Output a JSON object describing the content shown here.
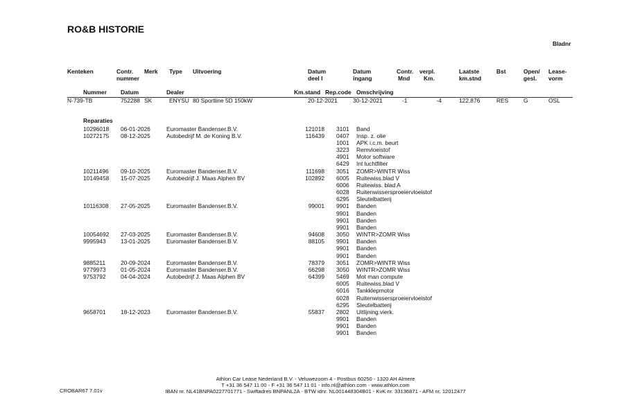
{
  "title": "RO&B HISTORIE",
  "page_label": "Bladnr",
  "headers": {
    "kenteken": "Kenteken",
    "contr_nummer_1": "Contr.",
    "contr_nummer_2": "nummer",
    "merk": "Merk",
    "type": "Type",
    "uitvoering": "Uitvoering",
    "datum_deel_1": "Datum",
    "datum_deel_2": "deel I",
    "datum_ingang_1": "Datum",
    "datum_ingang_2": "ingang",
    "contr_1": "Contr.",
    "contr_2": "Mnd",
    "verpl_1": "verpl.",
    "verpl_2": "Km.",
    "laatste_1": "Laatste",
    "laatste_2": "km.stnd",
    "bst": "Bst",
    "open_1": "Open/",
    "open_2": "gesl.",
    "lease_1": "Lease-",
    "lease_2": "vorm"
  },
  "subheaders": {
    "nummer": "Nummer",
    "datum": "Datum",
    "dealer": "Dealer",
    "kmstand": "Km.stand",
    "repcode": "Rep.code",
    "omschrijving": "Omschrijving"
  },
  "vehicle": {
    "kenteken": "N-739-TB",
    "contract": "752288",
    "merk": "SK",
    "type": "ENYSU",
    "uitvoering": "80 Sportline 5D 150kW",
    "datum_deel_1": "20-12-2021",
    "datum_ingang": "30-12-2021",
    "contr_mnd": "-1",
    "verpl_km": "-4",
    "laatste_km": "122.876",
    "bst": "RES",
    "open_gesl": "G",
    "leasevorm": "OSL"
  },
  "section_label": "Reparaties",
  "repairs": [
    {
      "nummer": "10296018",
      "datum": "06-01-2026",
      "dealer": "Euromaster Bandenser.B.V.",
      "km": "121018",
      "items": [
        {
          "code": "3101",
          "desc": "Band"
        }
      ]
    },
    {
      "nummer": "10272175",
      "datum": "08-12-2025",
      "dealer": "Autobedrijf M. de Koning B.V.",
      "km": "116439",
      "items": [
        {
          "code": "0407",
          "desc": "Insp. z. olie"
        },
        {
          "code": "1001",
          "desc": "APK i.c.m. beurt"
        },
        {
          "code": "3223",
          "desc": "Remvloeistof"
        },
        {
          "code": "4901",
          "desc": "Motor software"
        },
        {
          "code": "6429",
          "desc": "Int luchtfilter"
        }
      ]
    },
    {
      "nummer": "10211496",
      "datum": "09-10-2025",
      "dealer": "Euromaster Bandenser.B.V.",
      "km": "111698",
      "items": [
        {
          "code": "3051",
          "desc": "ZOMR>WINTR Wiss"
        }
      ]
    },
    {
      "nummer": "10149458",
      "datum": "15-07-2025",
      "dealer": "Autobedrijf J. Maas Alphen BV",
      "km": "102892",
      "items": [
        {
          "code": "6005",
          "desc": "Ruitewiss.blad V"
        },
        {
          "code": "6006",
          "desc": "Ruitewiss. blad A"
        },
        {
          "code": "6028",
          "desc": "Ruitenwissersproeiervloeistof"
        },
        {
          "code": "6295",
          "desc": "Sleutelbatterij"
        }
      ]
    },
    {
      "nummer": "10116308",
      "datum": "27-05-2025",
      "dealer": "Euromaster Bandenser.B.V.",
      "km": "99001",
      "items": [
        {
          "code": "9901",
          "desc": "Banden"
        },
        {
          "code": "9901",
          "desc": "Banden"
        },
        {
          "code": "9901",
          "desc": "Banden"
        },
        {
          "code": "9901",
          "desc": "Banden"
        }
      ]
    },
    {
      "nummer": "10054692",
      "datum": "27-03-2025",
      "dealer": "Euromaster Bandenser.B.V.",
      "km": "94608",
      "items": [
        {
          "code": "3050",
          "desc": "WINTR>ZOMR Wiss"
        }
      ]
    },
    {
      "nummer": "9995943",
      "datum": "13-01-2025",
      "dealer": "Euromaster Bandenser.B.V.",
      "km": "88105",
      "items": [
        {
          "code": "9901",
          "desc": "Banden"
        },
        {
          "code": "9901",
          "desc": "Banden"
        },
        {
          "code": "9901",
          "desc": "Banden"
        }
      ]
    },
    {
      "nummer": "9885211",
      "datum": "20-09-2024",
      "dealer": "Euromaster Bandenser.B.V.",
      "km": "78379",
      "items": [
        {
          "code": "3051",
          "desc": "ZOMR>WINTR Wiss"
        }
      ]
    },
    {
      "nummer": "9779973",
      "datum": "01-05-2024",
      "dealer": "Euromaster Bandenser.B.V.",
      "km": "66298",
      "items": [
        {
          "code": "3050",
          "desc": "WINTR>ZOMR Wiss"
        }
      ]
    },
    {
      "nummer": "9753792",
      "datum": "04-04-2024",
      "dealer": "Autobedrijf J. Maas Alphen BV",
      "km": "64399",
      "items": [
        {
          "code": "5469",
          "desc": "Mot man compute"
        },
        {
          "code": "6005",
          "desc": "Ruitewiss.blad V"
        },
        {
          "code": "6016",
          "desc": "Tankklepmotor"
        },
        {
          "code": "6028",
          "desc": "Ruitenwissersproeiervloeistof"
        },
        {
          "code": "6295",
          "desc": "Sleutelbatterij"
        }
      ]
    },
    {
      "nummer": "9658701",
      "datum": "18-12-2023",
      "dealer": "Euromaster Bandenser.B.V.",
      "km": "55837",
      "items": [
        {
          "code": "2802",
          "desc": "Uitlijning.vierk."
        },
        {
          "code": "9901",
          "desc": "Banden"
        },
        {
          "code": "9901",
          "desc": "Banden"
        },
        {
          "code": "9901",
          "desc": "Banden"
        }
      ]
    }
  ],
  "footer": {
    "line1": "Athlon Car Lease Nederland B.V. - Veluwezoom 4 - Postbus 60250 - 1320 AH  Almere",
    "line2": "T +31 36 547 11 00 - F +31 36 547 11 01 - info.nl@athlon.com - www.athlon.com",
    "line3": "IBAN nr. NL41BNPA0227701771 - Swiftadres BNPANL2A - BTW idnr. NL001448304B01 - KvK nr. 33136871 - AFM nr. 12012477",
    "version": "CROBAR67 7.01v"
  }
}
